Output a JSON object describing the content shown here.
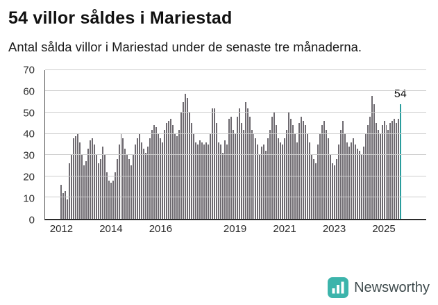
{
  "chart_data": {
    "type": "bar",
    "title": "54 villor såldes i Mariestad",
    "subtitle": "Antal sålda villor i Mariestad under de senaste tre månaderna.",
    "x_start": "2012-01",
    "frequency": "monthly-rolling-3-month-count",
    "values": [
      16,
      12,
      13,
      9,
      26,
      30,
      38,
      39,
      40,
      36,
      30,
      25,
      27,
      33,
      37,
      38,
      35,
      30,
      26,
      28,
      34,
      30,
      22,
      18,
      17,
      18,
      22,
      28,
      35,
      40,
      38,
      33,
      30,
      28,
      25,
      30,
      35,
      38,
      40,
      36,
      33,
      31,
      34,
      38,
      42,
      44,
      43,
      40,
      38,
      36,
      42,
      45,
      46,
      47,
      44,
      40,
      39,
      42,
      50,
      55,
      59,
      57,
      50,
      45,
      40,
      36,
      35,
      37,
      36,
      35,
      36,
      35,
      40,
      52,
      52,
      45,
      36,
      35,
      31,
      37,
      35,
      47,
      48,
      42,
      40,
      48,
      52,
      45,
      42,
      55,
      52,
      48,
      42,
      40,
      38,
      35,
      30,
      34,
      35,
      32,
      38,
      42,
      48,
      50,
      44,
      38,
      36,
      35,
      38,
      42,
      50,
      47,
      44,
      40,
      36,
      45,
      48,
      46,
      44,
      40,
      36,
      30,
      28,
      26,
      35,
      40,
      44,
      46,
      42,
      38,
      30,
      26,
      25,
      28,
      35,
      42,
      46,
      40,
      36,
      34,
      36,
      38,
      35,
      33,
      32,
      30,
      34,
      40,
      44,
      48,
      58,
      54,
      45,
      42,
      40,
      44,
      46,
      44,
      42,
      45,
      46,
      47,
      45,
      47,
      54
    ],
    "last_value_label": "54",
    "highlight_last": true,
    "bar_color": "#6e6a70",
    "highlight_color": "#2a9d9d",
    "ylim": [
      0,
      70
    ],
    "yticks": [
      0,
      10,
      20,
      30,
      40,
      50,
      60,
      70
    ],
    "xticks": [
      {
        "label": "2012",
        "index": 0
      },
      {
        "label": "2014",
        "index": 24
      },
      {
        "label": "2016",
        "index": 48
      },
      {
        "label": "2019",
        "index": 84
      },
      {
        "label": "2021",
        "index": 108
      },
      {
        "label": "2023",
        "index": 132
      },
      {
        "label": "2025",
        "index": 156
      }
    ],
    "grid": "horizontal",
    "legend": "none"
  },
  "footer": {
    "brand": "Newsworthy",
    "logo_color": "#3cb4ab"
  }
}
